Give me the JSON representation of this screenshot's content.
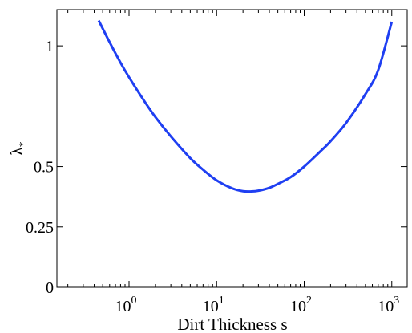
{
  "chart_data": {
    "type": "line",
    "title": "",
    "xlabel": "Dirt Thickness s",
    "ylabel": "λ",
    "ylabel_subscript": "*",
    "x_scale": "log",
    "xlim": [
      0.15,
      1500
    ],
    "ylim": [
      0,
      1.15
    ],
    "grid": false,
    "legend": "none",
    "x_ticks": [
      {
        "base": "10",
        "exp": "0",
        "value": 1
      },
      {
        "base": "10",
        "exp": "1",
        "value": 10
      },
      {
        "base": "10",
        "exp": "2",
        "value": 100
      },
      {
        "base": "10",
        "exp": "3",
        "value": 1000
      }
    ],
    "y_ticks": [
      {
        "label": "0",
        "value": 0
      },
      {
        "label": "0.25",
        "value": 0.25
      },
      {
        "label": "0.5",
        "value": 0.5
      },
      {
        "label": "1",
        "value": 1
      }
    ],
    "series": [
      {
        "color": "#1f3ff2",
        "x": [
          0.45,
          0.6,
          0.8,
          1,
          1.5,
          2,
          3,
          5,
          7,
          10,
          15,
          20,
          25,
          30,
          40,
          50,
          70,
          100,
          150,
          200,
          300,
          500,
          700,
          1000
        ],
        "y": [
          1.105,
          1.015,
          0.93,
          0.87,
          0.77,
          0.705,
          0.625,
          0.535,
          0.487,
          0.443,
          0.41,
          0.398,
          0.397,
          0.4,
          0.412,
          0.428,
          0.456,
          0.5,
          0.56,
          0.605,
          0.68,
          0.8,
          0.9,
          1.1
        ]
      }
    ]
  }
}
